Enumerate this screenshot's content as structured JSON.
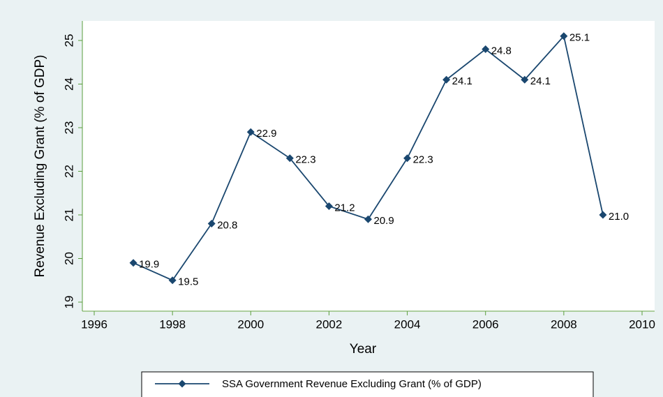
{
  "chart_data": {
    "type": "line",
    "x_label": "Year",
    "y_label": "Revenue Excluding Grant (% of GDP)",
    "x": [
      1997,
      1998,
      1999,
      2000,
      2001,
      2002,
      2003,
      2004,
      2005,
      2006,
      2007,
      2008,
      2009
    ],
    "series": [
      {
        "name": "SSA Government Revenue Excluding Grant (% of GDP)",
        "color": "#1a476f",
        "values": [
          19.9,
          19.5,
          20.8,
          22.9,
          22.3,
          21.2,
          20.9,
          22.3,
          24.1,
          24.8,
          24.1,
          25.1,
          21
        ],
        "value_labels": [
          "19.9",
          "19.5",
          "20.8",
          "22.9",
          "22.3",
          "21.2",
          "20.9",
          "22.3",
          "24.1",
          "24.8",
          "24.1",
          "25.1",
          "21.0"
        ]
      }
    ],
    "xlim": [
      1996,
      2010
    ],
    "xticks": [
      1996,
      1998,
      2000,
      2002,
      2004,
      2006,
      2008,
      2010
    ],
    "ylim": [
      19,
      25
    ],
    "yticks": [
      19,
      20,
      21,
      22,
      23,
      24,
      25
    ],
    "grid": false,
    "legend": "bottom"
  }
}
